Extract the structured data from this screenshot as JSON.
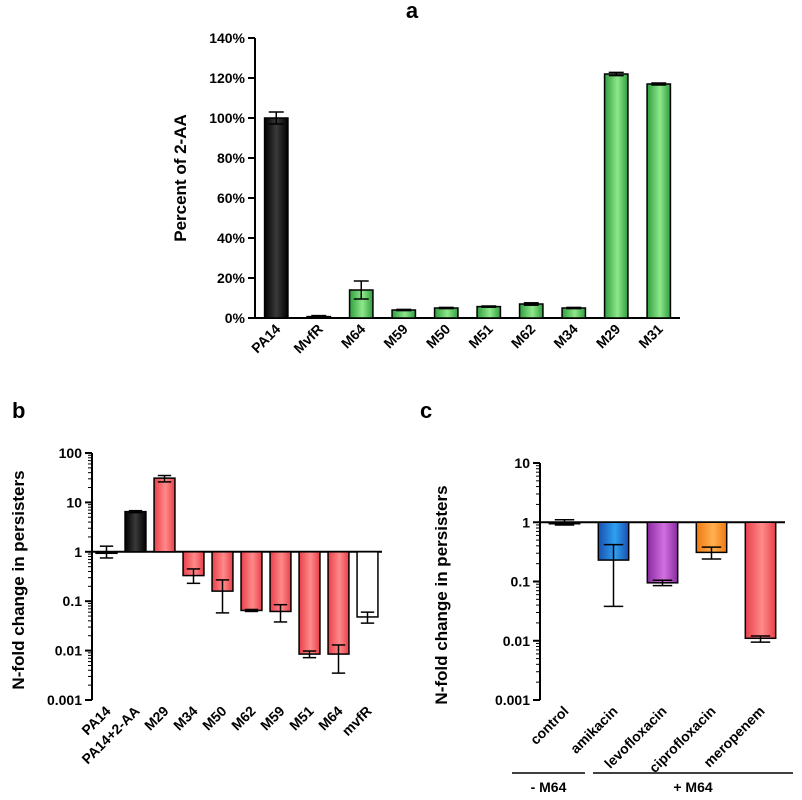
{
  "chart_data": [
    {
      "panel": "a",
      "type": "bar",
      "ylabel": "Percent of 2-AA",
      "xlabel": "",
      "ylim": [
        0,
        140
      ],
      "yticks": [
        "0%",
        "20%",
        "40%",
        "60%",
        "80%",
        "100%",
        "120%",
        "140%"
      ],
      "categories": [
        "PA14",
        "MvfR",
        "M64",
        "M59",
        "M50",
        "M51",
        "M62",
        "M34",
        "M29",
        "M31"
      ],
      "values": [
        100,
        0.7,
        14,
        4,
        5,
        5.7,
        7,
        5,
        122,
        117
      ],
      "errors": [
        3,
        0.5,
        4.5,
        0.3,
        0.3,
        0.3,
        0.6,
        0.3,
        0.8,
        0.5
      ],
      "colors": [
        "black",
        "#c0c0c0",
        "green",
        "green",
        "green",
        "green",
        "green",
        "green",
        "green",
        "green"
      ],
      "grid": false
    },
    {
      "panel": "b",
      "type": "bar",
      "ylabel": "N-fold change in persisters",
      "xlabel": "",
      "yscale": "log",
      "ylim": [
        0.001,
        100
      ],
      "baseline": 1,
      "yticks": [
        "0.001",
        "0.01",
        "0.1",
        "1",
        "10",
        "100"
      ],
      "categories": [
        "PA14",
        "PA14+2-AA",
        "M29",
        "M34",
        "M50",
        "M62",
        "M59",
        "M51",
        "M64",
        "mvfR"
      ],
      "values": [
        1,
        6.5,
        31,
        0.33,
        0.16,
        0.065,
        0.062,
        0.0085,
        0.0085,
        0.048
      ],
      "errors_low": [
        0.75,
        6.2,
        26,
        0.23,
        0.058,
        0.062,
        0.038,
        0.0072,
        0.0035,
        0.036
      ],
      "errors_high": [
        1.3,
        6.8,
        35,
        0.45,
        0.27,
        0.068,
        0.085,
        0.0098,
        0.013,
        0.06
      ],
      "colors": [
        "white",
        "black",
        "red",
        "red",
        "red",
        "red",
        "red",
        "red",
        "red",
        "white"
      ],
      "grid": false
    },
    {
      "panel": "c",
      "type": "bar",
      "ylabel": "N-fold change in persisters",
      "xlabel": "",
      "yscale": "log",
      "ylim": [
        0.001,
        10
      ],
      "baseline": 1,
      "yticks": [
        "0.001",
        "0.01",
        "0.1",
        "1",
        "10"
      ],
      "categories": [
        "control",
        "amikacin",
        "levofloxacin",
        "ciprofloxacin",
        "meropenem"
      ],
      "values": [
        1,
        0.23,
        0.095,
        0.31,
        0.011
      ],
      "errors_low": [
        0.9,
        0.038,
        0.085,
        0.24,
        0.0095
      ],
      "errors_high": [
        1.1,
        0.42,
        0.105,
        0.38,
        0.012
      ],
      "colors": [
        "white",
        "blue",
        "purple",
        "orange",
        "red"
      ],
      "groups": [
        {
          "label": "- M64",
          "from": 0,
          "to": 0
        },
        {
          "label": "+ M64",
          "from": 1,
          "to": 4
        }
      ],
      "grid": false
    }
  ],
  "palette": {
    "black": "#111111",
    "green": "#5fce5f",
    "red": "#f05a5a",
    "blue": "#1e6fd0",
    "purple": "#a040b0",
    "orange": "#f5901e",
    "white": "#ffffff"
  }
}
